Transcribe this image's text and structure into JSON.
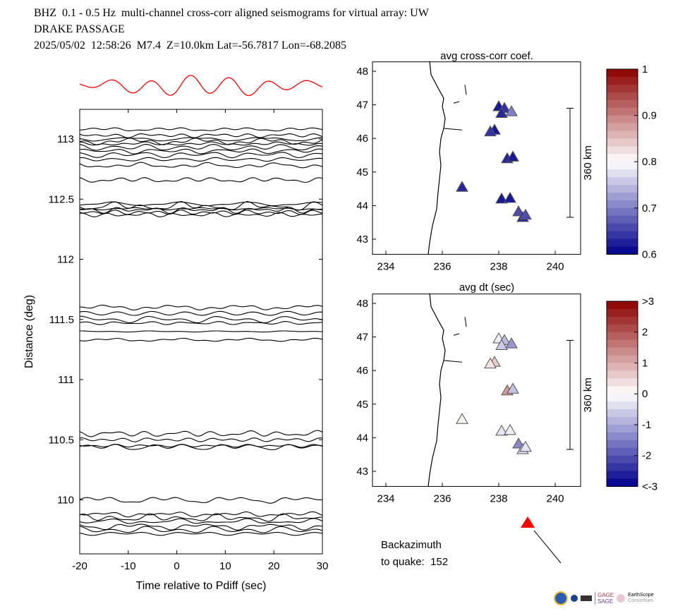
{
  "header": {
    "line1": "BHZ  0.1 - 0.5 Hz  multi-channel cross-corr aligned seismograms for virtual array: UW",
    "line2": "DRAKE PASSAGE",
    "line3": "2025/05/02  12:58:26  M7.4  Z=10.0km Lat=-56.7817 Lon=-68.2085"
  },
  "chart_data": [
    {
      "type": "line",
      "title": "",
      "xlabel": "Time relative to Pdiff (sec)",
      "ylabel": "Distance (deg)",
      "xlim": [
        -20,
        30
      ],
      "ylim": [
        109.6,
        113.25
      ],
      "xticks": [
        "-20",
        "-10",
        "0",
        "10",
        "20",
        "30"
      ],
      "yticks": [
        "110",
        "110.5",
        "111",
        "111.5",
        "112",
        "112.5",
        "113"
      ],
      "trace_distances": [
        113.08,
        113.03,
        113.0,
        112.98,
        112.96,
        112.93,
        112.9,
        112.87,
        112.83,
        112.78,
        112.66,
        112.46,
        112.44,
        112.42,
        112.41,
        112.39,
        112.37,
        111.6,
        111.55,
        111.5,
        111.47,
        111.4,
        111.33,
        110.55,
        110.5,
        110.45,
        110.44,
        110.0,
        109.88,
        109.85,
        109.82,
        109.78,
        109.75,
        109.72
      ],
      "stack_trace": "red"
    },
    {
      "type": "scatter",
      "title": "avg cross-corr coef.",
      "xticks": [
        "234",
        "236",
        "238",
        "240"
      ],
      "yticks": [
        "43",
        "44",
        "45",
        "46",
        "47",
        "48"
      ],
      "xlim": [
        233.5,
        241.5
      ],
      "ylim": [
        42.55,
        48.3
      ],
      "points": [
        [
          238.0,
          46.95,
          0.62
        ],
        [
          238.2,
          46.9,
          0.64
        ],
        [
          238.45,
          46.8,
          0.7
        ],
        [
          238.1,
          46.75,
          0.63
        ],
        [
          237.85,
          46.25,
          0.62
        ],
        [
          237.7,
          46.2,
          0.64
        ],
        [
          238.3,
          45.4,
          0.63
        ],
        [
          238.5,
          45.45,
          0.62
        ],
        [
          236.7,
          44.55,
          0.63
        ],
        [
          238.1,
          44.2,
          0.62
        ],
        [
          238.4,
          44.22,
          0.62
        ],
        [
          238.7,
          43.82,
          0.66
        ],
        [
          238.85,
          43.65,
          0.63
        ],
        [
          238.95,
          43.72,
          0.66
        ]
      ],
      "colorbar": {
        "ticks": [
          "0.6",
          "0.7",
          "0.8",
          "0.9",
          "1"
        ],
        "range": [
          0.6,
          1
        ],
        "center": 0.8
      },
      "scale_label": "360 km"
    },
    {
      "type": "scatter",
      "title": "avg dt (sec)",
      "xticks": [
        "234",
        "236",
        "238",
        "240"
      ],
      "yticks": [
        "43",
        "44",
        "45",
        "46",
        "47",
        "48"
      ],
      "xlim": [
        233.5,
        241.5
      ],
      "ylim": [
        42.55,
        48.3
      ],
      "points": [
        [
          238.0,
          46.95,
          -0.2
        ],
        [
          238.2,
          46.9,
          -0.8
        ],
        [
          238.45,
          46.8,
          -1.2
        ],
        [
          238.1,
          46.75,
          -0.6
        ],
        [
          237.85,
          46.25,
          0.6
        ],
        [
          237.7,
          46.2,
          0.3
        ],
        [
          238.3,
          45.4,
          1.2
        ],
        [
          238.5,
          45.45,
          -0.7
        ],
        [
          236.7,
          44.55,
          0.2
        ],
        [
          238.1,
          44.2,
          -0.3
        ],
        [
          238.4,
          44.22,
          -0.2
        ],
        [
          238.7,
          43.82,
          -1.4
        ],
        [
          238.85,
          43.65,
          -0.4
        ],
        [
          238.95,
          43.72,
          -0.3
        ]
      ],
      "colorbar": {
        "ticks": [
          "<-3",
          "-2",
          "-1",
          "0",
          "1",
          "2",
          ">3"
        ],
        "range": [
          -3,
          3
        ],
        "center": 0
      },
      "scale_label": "360 km"
    }
  ],
  "backazimuth": {
    "label": "Backazimuth",
    "label2": "to quake:",
    "value": "152"
  },
  "logos": {
    "gage": "GAGE",
    "sage": "SAGE",
    "earthscope": "EarthScope",
    "consortium": "Consortium"
  },
  "colors": {
    "stack": "#ff0000",
    "arrow": "#ff0000"
  }
}
